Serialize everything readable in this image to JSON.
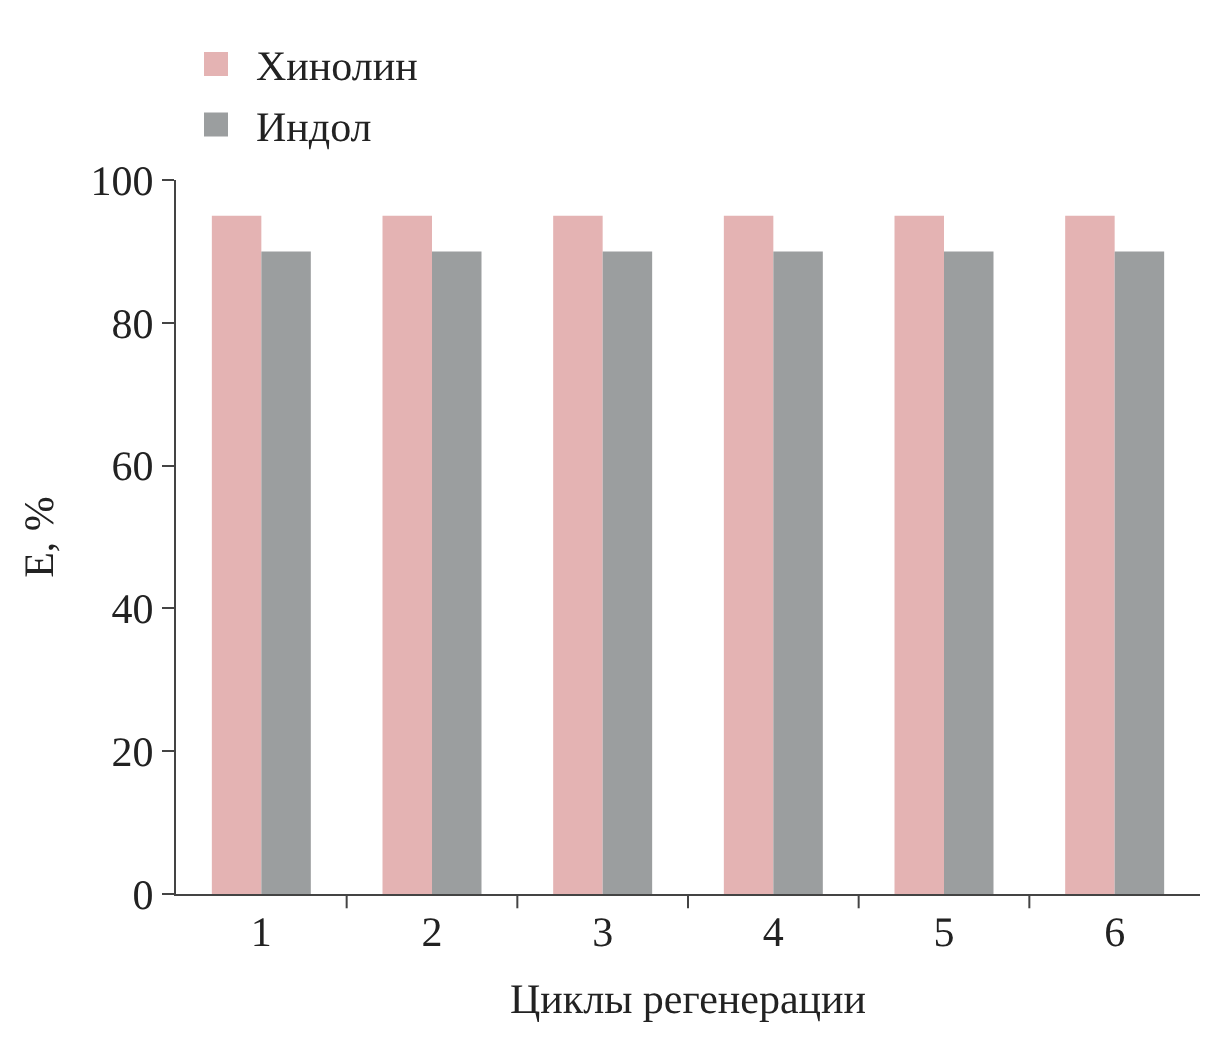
{
  "chart_data": {
    "type": "bar",
    "xlabel": "Циклы регенерации",
    "ylabel": "E, %",
    "categories": [
      "1",
      "2",
      "3",
      "4",
      "5",
      "6"
    ],
    "series": [
      {
        "name": "Хинолин",
        "color": "#e4b3b3",
        "values": [
          95,
          95,
          95,
          95,
          95,
          95
        ]
      },
      {
        "name": "Индол",
        "color": "#9b9e9f",
        "values": [
          90,
          90,
          90,
          90,
          90,
          90
        ]
      }
    ],
    "ylim": [
      0,
      100
    ],
    "yticks": [
      0,
      20,
      40,
      60,
      80,
      100
    ],
    "grid": false,
    "legend": "top left"
  }
}
